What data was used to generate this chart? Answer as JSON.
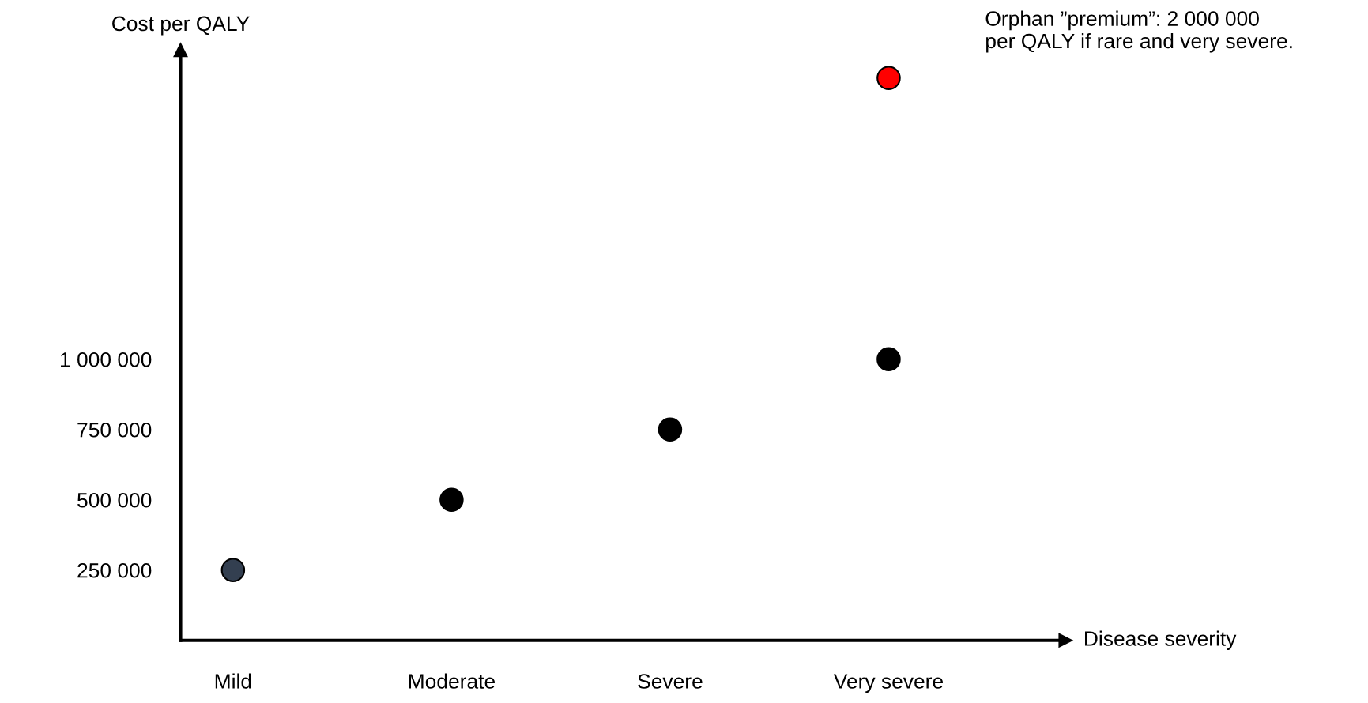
{
  "chart_data": {
    "type": "scatter",
    "xlabel": "Disease severity",
    "ylabel": "Cost per QALY",
    "categories": [
      "Mild",
      "Moderate",
      "Severe",
      "Very severe"
    ],
    "series": [
      {
        "values": [
          250000,
          500000,
          750000,
          1000000
        ],
        "colors": [
          "#333f50",
          "#000000",
          "#000000",
          "#000000"
        ]
      },
      {
        "x": [
          "Very severe"
        ],
        "values": [
          2000000
        ],
        "color": "#ff0000"
      }
    ],
    "ylim": [
      0,
      2100000
    ],
    "yticks": [
      {
        "value": 250000,
        "label": "250 000"
      },
      {
        "value": 500000,
        "label": "500 000"
      },
      {
        "value": 750000,
        "label": "750 000"
      },
      {
        "value": 1000000,
        "label": "1 000 000"
      }
    ],
    "annotations": [
      "Orphan ”premium”: 2 000 000\nper QALY if rare and very severe."
    ],
    "grid": false,
    "legend": false,
    "marker": "circle"
  }
}
